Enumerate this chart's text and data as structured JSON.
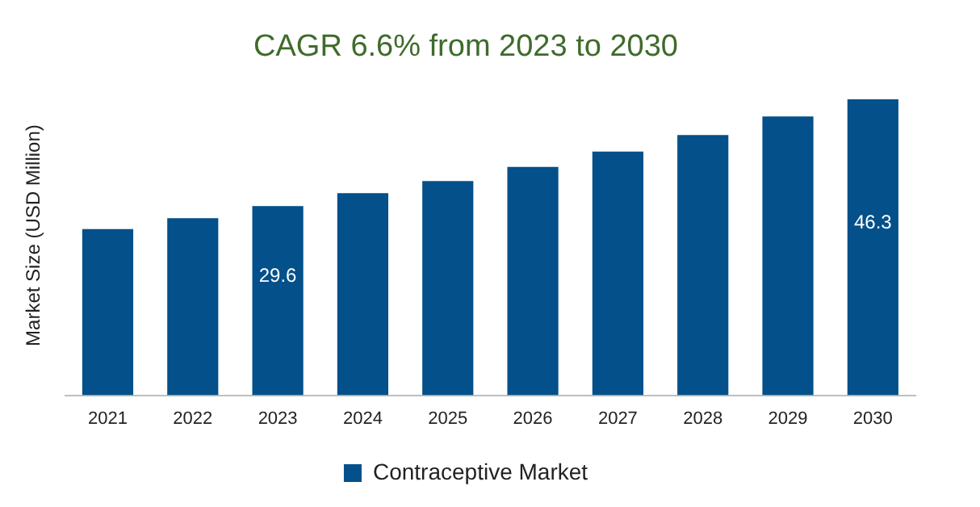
{
  "chart_data": {
    "type": "bar",
    "title": "CAGR 6.6% from 2023 to 2030",
    "ylabel": "Market Size (USD Million)",
    "categories": [
      "2021",
      "2022",
      "2023",
      "2024",
      "2025",
      "2026",
      "2027",
      "2028",
      "2029",
      "2030"
    ],
    "series": [
      {
        "name": "Contraceptive Market",
        "color": "#03508a",
        "values": [
          26.0,
          27.7,
          29.6,
          31.6,
          33.5,
          35.7,
          38.1,
          40.7,
          43.6,
          46.3
        ],
        "value_labels": [
          null,
          null,
          "29.6",
          null,
          null,
          null,
          null,
          null,
          null,
          "46.3"
        ]
      }
    ],
    "tick_labels": "x",
    "grid": false,
    "legend": "bottom"
  }
}
